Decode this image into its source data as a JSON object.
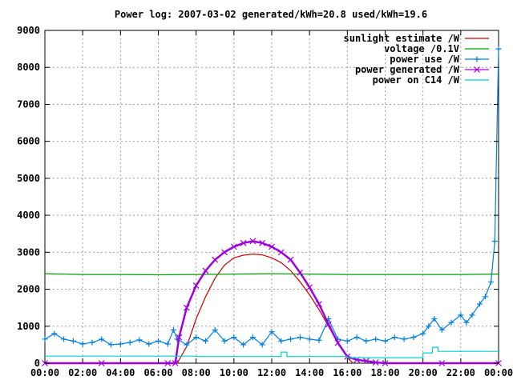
{
  "chart_data": {
    "type": "line",
    "title": "Power log: 2007-03-02 generated/kWh=20.8 used/kWh=19.6",
    "xlabel": "",
    "ylabel": "",
    "x_unit": "hours",
    "xlim": [
      0,
      24
    ],
    "ylim": [
      0,
      9000
    ],
    "x_ticks": [
      0,
      2,
      4,
      6,
      8,
      10,
      12,
      14,
      16,
      18,
      20,
      22,
      24
    ],
    "x_tick_labels": [
      "00:00",
      "02:00",
      "04:00",
      "06:00",
      "08:00",
      "10:00",
      "12:00",
      "14:00",
      "16:00",
      "18:00",
      "20:00",
      "22:00",
      "00:00"
    ],
    "y_ticks": [
      0,
      1000,
      2000,
      3000,
      4000,
      5000,
      6000,
      7000,
      8000,
      9000
    ],
    "y_tick_labels": [
      "0",
      "1000",
      "2000",
      "3000",
      "4000",
      "5000",
      "6000",
      "7000",
      "8000",
      "9000"
    ],
    "grid": true,
    "legend_position": "top-right",
    "series": [
      {
        "name": "sunlight estimate /W",
        "color": "#cc0000",
        "marker": "none",
        "x": [
          7.0,
          7.5,
          8.0,
          8.5,
          9.0,
          9.5,
          10.0,
          10.5,
          11.0,
          11.5,
          12.0,
          12.5,
          13.0,
          13.5,
          14.0,
          14.5,
          15.0,
          15.5,
          16.0,
          16.3
        ],
        "y": [
          0,
          450,
          1200,
          1800,
          2300,
          2650,
          2850,
          2920,
          2950,
          2930,
          2850,
          2720,
          2500,
          2200,
          1850,
          1450,
          1000,
          550,
          150,
          0
        ]
      },
      {
        "name": "voltage /0.1V",
        "color": "#00a000",
        "marker": "none",
        "x": [
          0,
          2,
          4,
          6,
          8,
          10,
          12,
          14,
          16,
          18,
          20,
          22,
          24
        ],
        "y": [
          2420,
          2400,
          2400,
          2390,
          2400,
          2410,
          2420,
          2410,
          2400,
          2400,
          2400,
          2400,
          2410
        ]
      },
      {
        "name": "power use /W",
        "color": "#0080e0",
        "marker": "plus",
        "x": [
          0,
          0.5,
          1.0,
          1.5,
          2.0,
          2.5,
          3.0,
          3.5,
          4.0,
          4.5,
          5.0,
          5.5,
          6.0,
          6.5,
          6.8,
          7.0,
          7.5,
          8.0,
          8.5,
          9.0,
          9.5,
          10.0,
          10.5,
          11.0,
          11.5,
          12.0,
          12.5,
          13.0,
          13.5,
          14.0,
          14.5,
          15.0,
          15.5,
          16.0,
          16.5,
          17.0,
          17.5,
          18.0,
          18.5,
          19.0,
          19.5,
          20.0,
          20.3,
          20.6,
          21.0,
          21.5,
          22.0,
          22.3,
          22.6,
          23.0,
          23.3,
          23.6,
          23.8,
          24.0
        ],
        "y": [
          650,
          800,
          650,
          600,
          520,
          560,
          650,
          500,
          520,
          560,
          630,
          520,
          600,
          520,
          900,
          650,
          500,
          700,
          600,
          900,
          600,
          700,
          500,
          700,
          500,
          850,
          600,
          650,
          700,
          650,
          620,
          1200,
          650,
          600,
          700,
          600,
          650,
          600,
          700,
          650,
          700,
          800,
          1000,
          1200,
          900,
          1100,
          1300,
          1100,
          1300,
          1600,
          1800,
          2200,
          3300,
          8500
        ]
      },
      {
        "name": "power generated /W",
        "color": "#a000e0",
        "marker": "x",
        "x": [
          0,
          3,
          6.5,
          6.9,
          7.1,
          7.5,
          8.0,
          8.5,
          9.0,
          9.5,
          10.0,
          10.5,
          11.0,
          11.5,
          12.0,
          12.5,
          13.0,
          13.5,
          14.0,
          14.5,
          15.0,
          15.5,
          16.0,
          16.5,
          17.0,
          17.5,
          18.0,
          21.0,
          24.0
        ],
        "y": [
          0,
          0,
          0,
          0,
          700,
          1500,
          2100,
          2500,
          2800,
          3000,
          3150,
          3250,
          3300,
          3250,
          3150,
          3000,
          2800,
          2450,
          2050,
          1600,
          1050,
          550,
          180,
          90,
          60,
          20,
          0,
          0,
          0
        ]
      },
      {
        "name": "power on C14 /W",
        "color": "#00d0d0",
        "marker": "none",
        "x": [
          0,
          8.0,
          8.0,
          12.5,
          12.5,
          12.8,
          12.8,
          16.0,
          16.0,
          20.0,
          20.0,
          20.5,
          20.5,
          20.8,
          20.8,
          24.0
        ],
        "y": [
          190,
          190,
          180,
          180,
          300,
          300,
          180,
          180,
          150,
          150,
          280,
          280,
          430,
          430,
          320,
          320
        ]
      }
    ]
  }
}
